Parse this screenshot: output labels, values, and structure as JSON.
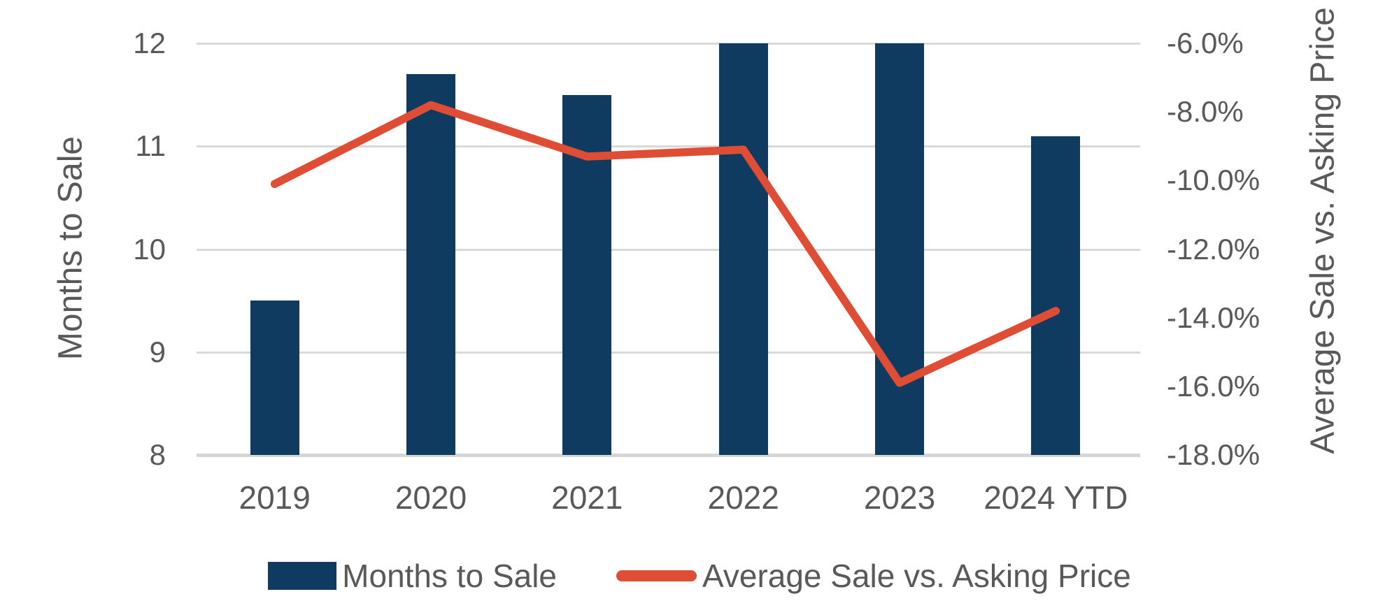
{
  "chart_data": {
    "type": "combo",
    "title": "",
    "categories": [
      "2019",
      "2020",
      "2021",
      "2022",
      "2023",
      "2024 YTD"
    ],
    "series": [
      {
        "name": "Months to Sale",
        "type": "bar",
        "axis": "left",
        "color": "#0f3b60",
        "values": [
          9.5,
          11.7,
          11.5,
          12.0,
          12.0,
          11.1
        ]
      },
      {
        "name": "Average Sale vs. Asking Price",
        "type": "line",
        "axis": "right",
        "color": "#e04d35",
        "values": [
          -10.1,
          -7.8,
          -9.3,
          -9.1,
          -15.9,
          -13.8
        ]
      }
    ],
    "left_axis": {
      "title": "Months to Sale",
      "min": 8,
      "max": 12,
      "tick_step": 1,
      "ticks": [
        "12",
        "11",
        "10",
        "9",
        "8"
      ]
    },
    "right_axis": {
      "title": "Average Sale vs. Asking Price",
      "min": -18,
      "max": -6,
      "tick_step": 2,
      "ticks": [
        "-6.0%",
        "-8.0%",
        "-10.0%",
        "-12.0%",
        "-14.0%",
        "-16.0%",
        "-18.0%"
      ]
    },
    "grid": true,
    "legend_position": "bottom",
    "colors": {
      "bar": "#0f3b60",
      "line": "#e04d35",
      "gridline": "#d9d9d9",
      "axis_line": "#d6d6d6",
      "text": "#595959"
    }
  }
}
